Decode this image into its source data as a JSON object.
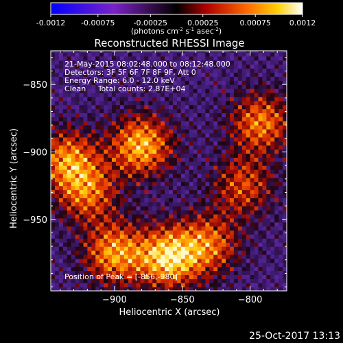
{
  "colorbar": {
    "ticks": [
      "-0.0012",
      "-0.00075",
      "-0.00025",
      "0.00025",
      "0.00075",
      "0.0012"
    ],
    "tick_values": [
      -0.0012,
      -0.00075,
      -0.00025,
      0.00025,
      0.00075,
      0.0012
    ],
    "range": [
      -0.0012,
      0.0012
    ],
    "unit_prefix": "(photons cm",
    "unit_exp1": "-2",
    "unit_mid1": " s",
    "unit_exp2": "-1",
    "unit_mid2": " asec",
    "unit_exp3": "-2",
    "unit_suffix": ")",
    "colormap": "blue-purple-black-red-orange-yellow-white"
  },
  "chart_data": {
    "type": "heatmap",
    "title": "Reconstructed RHESSI Image",
    "xlabel": "Heliocentric X (arcsec)",
    "ylabel": "Heliocentric Y (arcsec)",
    "xlim": [
      -947,
      -773
    ],
    "ylim": [
      -1003,
      -825
    ],
    "x_ticks": [
      -900,
      -850,
      -800
    ],
    "x_tick_labels": [
      "−900",
      "−850",
      "−800"
    ],
    "y_ticks": [
      -950,
      -900,
      -850
    ],
    "y_tick_labels": [
      "−950",
      "−900",
      "−850"
    ],
    "info_lines": [
      "21-May-2015 08:02:48.000 to 08:12:48.000",
      "Detectors: 3F 5F 6F 7F 8F 9F, Att 0",
      "Energy Range: 6.0 - 12.0 keV",
      "Clean     Total counts: 2.87E+04"
    ],
    "peak_label": "Position of Peak = [-856,-980]",
    "peak": [
      -856,
      -980
    ],
    "bright_regions": [
      {
        "x": -880,
        "y": -895,
        "level": 0.0011
      },
      {
        "x": -935,
        "y": -905,
        "level": 0.0009
      },
      {
        "x": -920,
        "y": -930,
        "level": 0.0008
      },
      {
        "x": -860,
        "y": -978,
        "level": 0.0012
      },
      {
        "x": -900,
        "y": -975,
        "level": 0.001
      },
      {
        "x": -830,
        "y": -968,
        "level": 0.0008
      },
      {
        "x": -792,
        "y": -878,
        "level": 0.0009
      },
      {
        "x": -805,
        "y": -925,
        "level": 0.0007
      }
    ]
  },
  "timestamp": "25-Oct-2017 13:13"
}
